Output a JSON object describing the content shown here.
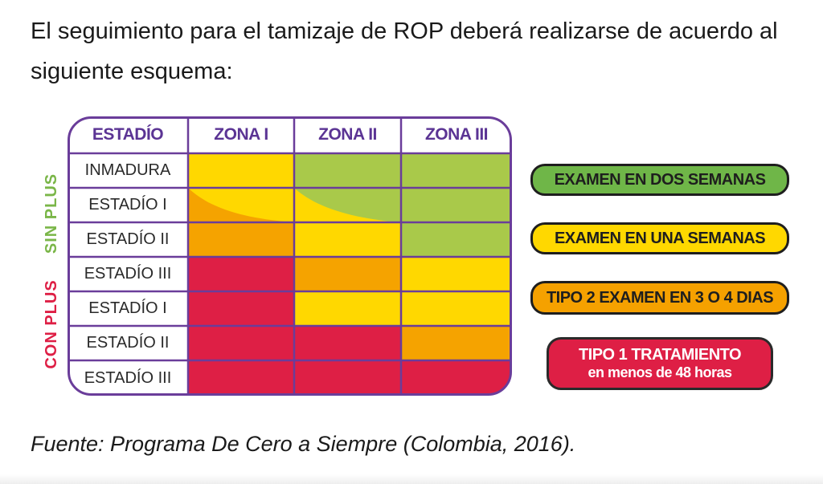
{
  "intro_text": "El seguimiento para el tamizaje de ROP deberá realizarse de acuerdo al siguiente esquema:",
  "table": {
    "headers": [
      "ESTADÍO",
      "ZONA I",
      "ZONA II",
      "ZONA III"
    ],
    "rows": [
      {
        "label": "INMADURA",
        "cells": [
          "yellow",
          "green",
          "green"
        ]
      },
      {
        "label": "ESTADÍO I",
        "cells": [
          "orange/yellow split",
          "yellow/green split",
          "green"
        ]
      },
      {
        "label": "ESTADÍO II",
        "cells": [
          "orange",
          "yellow",
          "green"
        ]
      },
      {
        "label": "ESTADÍO III",
        "cells": [
          "red",
          "orange",
          "yellow"
        ]
      },
      {
        "label": "ESTADÍO I",
        "cells": [
          "red",
          "yellow",
          "yellow"
        ]
      },
      {
        "label": "ESTADÍO II",
        "cells": [
          "red",
          "red",
          "orange"
        ]
      },
      {
        "label": "ESTADÍO III",
        "cells": [
          "red",
          "red",
          "red"
        ]
      }
    ],
    "group_labels": {
      "sin_plus": "SIN PLUS",
      "con_plus": "CON PLUS"
    }
  },
  "legend": [
    {
      "line1": "EXAMEN EN DOS SEMANAS",
      "line2": "",
      "color": "#6fb648"
    },
    {
      "line1": "EXAMEN EN UNA SEMANAS",
      "line2": "",
      "color": "#ffd800"
    },
    {
      "line1": "TIPO 2 EXAMEN EN 3 O 4 DIAS",
      "line2": "",
      "color": "#f5a100"
    },
    {
      "line1": "TIPO 1 TRATAMIENTO",
      "line2": "en menos de 48 horas",
      "color": "#de1f45"
    }
  ],
  "colors": {
    "green": "#a9c94a",
    "yellow": "#ffd800",
    "orange": "#f5a300",
    "red": "#de1f45",
    "border": "#6a3d9a",
    "sin_plus_text": "#7ab648",
    "con_plus_text": "#de1f45"
  },
  "source_text": "Fuente: Programa De Cero a Siempre (Colombia, 2016)."
}
